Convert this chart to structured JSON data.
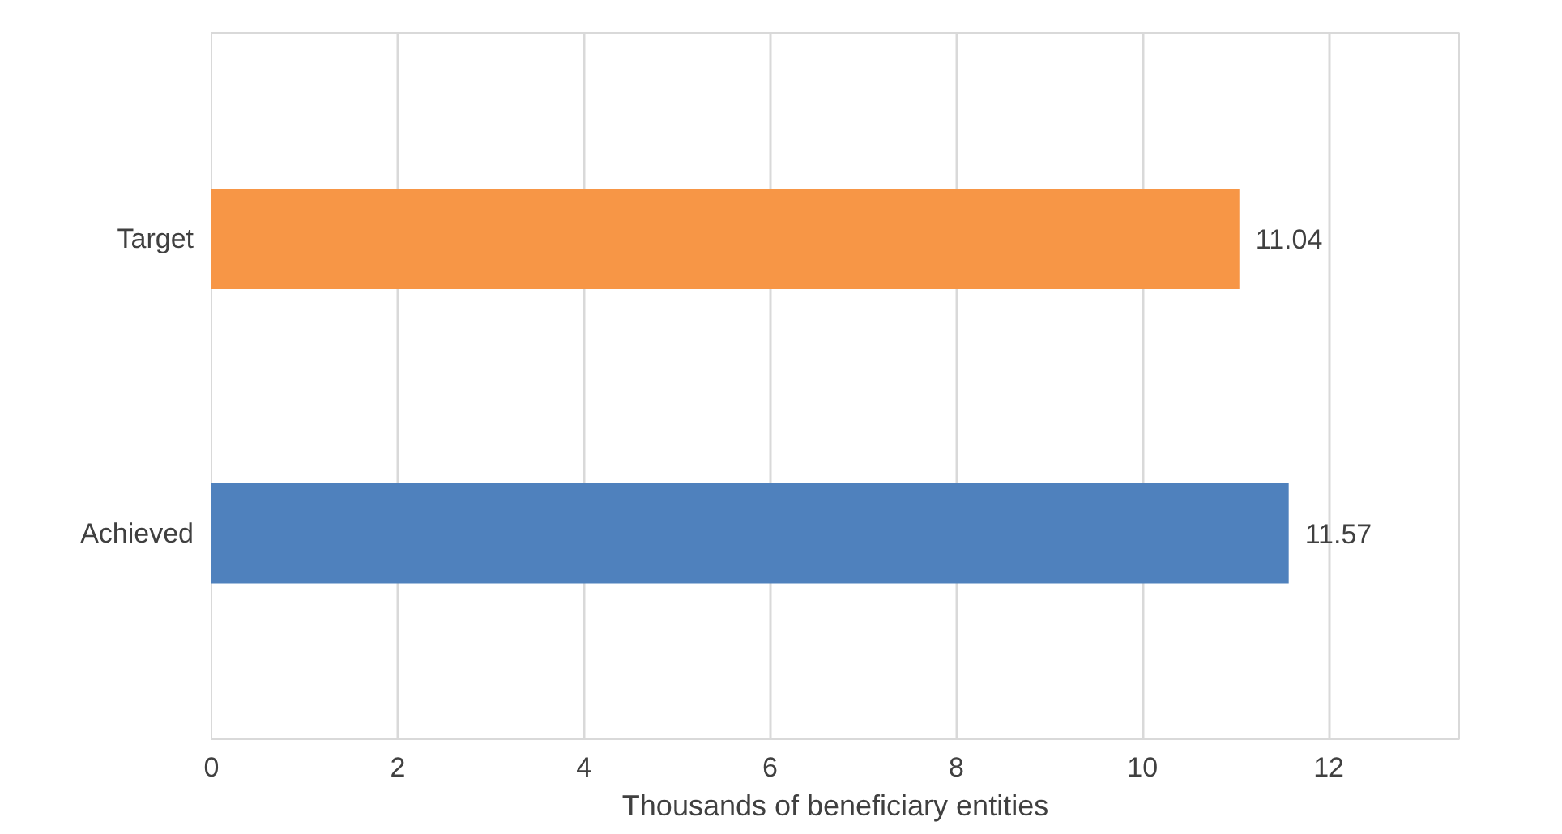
{
  "chart_data": {
    "type": "bar",
    "orientation": "horizontal",
    "xlabel": "Thousands of beneficiary entities",
    "categories": [
      "Target",
      "Achieved"
    ],
    "values": [
      11.04,
      11.57
    ],
    "colors": [
      "#f79646",
      "#4f81bd"
    ],
    "xlim": [
      0,
      13.4
    ],
    "xticks": [
      0,
      2,
      4,
      6,
      8,
      10,
      12
    ],
    "grid": "x",
    "data_labels": true
  }
}
